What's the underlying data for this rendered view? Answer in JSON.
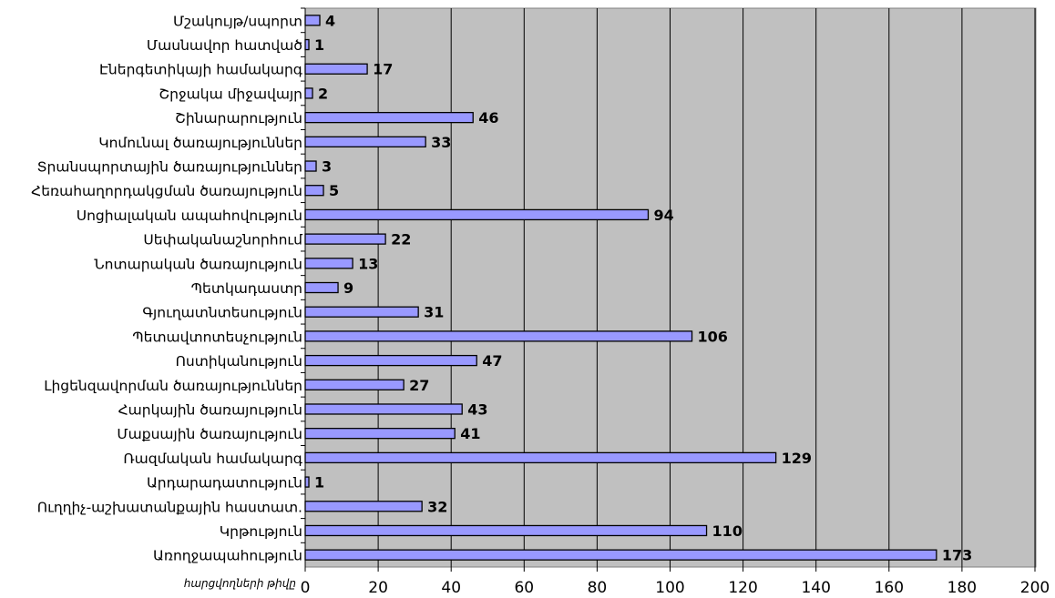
{
  "chart_data": {
    "type": "bar",
    "orientation": "horizontal",
    "title": "",
    "xlabel": "հարցվողների թիվը",
    "ylabel": "",
    "xlim": [
      0,
      200
    ],
    "xticks": [
      0,
      20,
      40,
      60,
      80,
      100,
      120,
      140,
      160,
      180,
      200
    ],
    "grid": "vertical",
    "colors": {
      "plot_background": "#c0c0c0",
      "bar_fill": "#9999ff",
      "bar_stroke": "#000000",
      "grid": "#000000"
    },
    "categories": [
      "Մշակույթ/սպորտ",
      "Մասնավոր հատված",
      "Էներգետիկայի համակարգ",
      "Շրջակա միջավայր",
      "Շինարարություն",
      "Կոմունալ ծառայություններ",
      "Տրանսպորտային ծառայություններ",
      "Հեռահաղորդակցման ծառայություն",
      "Սոցիալական ապահովություն",
      "Սեփականաշնորհում",
      "Նոտարական ծառայություն",
      "Պետկադաստր",
      "Գյուղատնտեսություն",
      "Պետավտոտեսչություն",
      "Ոստիկանություն",
      "Լիցենզավորման ծառայություններ",
      "Հարկային ծառայություն",
      "Մաքսային ծառայություն",
      "Ռազմական համակարգ",
      "Արդարադատություն",
      "Ուղղիչ-աշխատանքային հաստատ.",
      "Կրթություն",
      "Առողջապահություն"
    ],
    "values": [
      4,
      1,
      17,
      2,
      46,
      33,
      3,
      5,
      94,
      22,
      13,
      9,
      31,
      106,
      47,
      27,
      43,
      41,
      129,
      1,
      32,
      110,
      173
    ]
  }
}
